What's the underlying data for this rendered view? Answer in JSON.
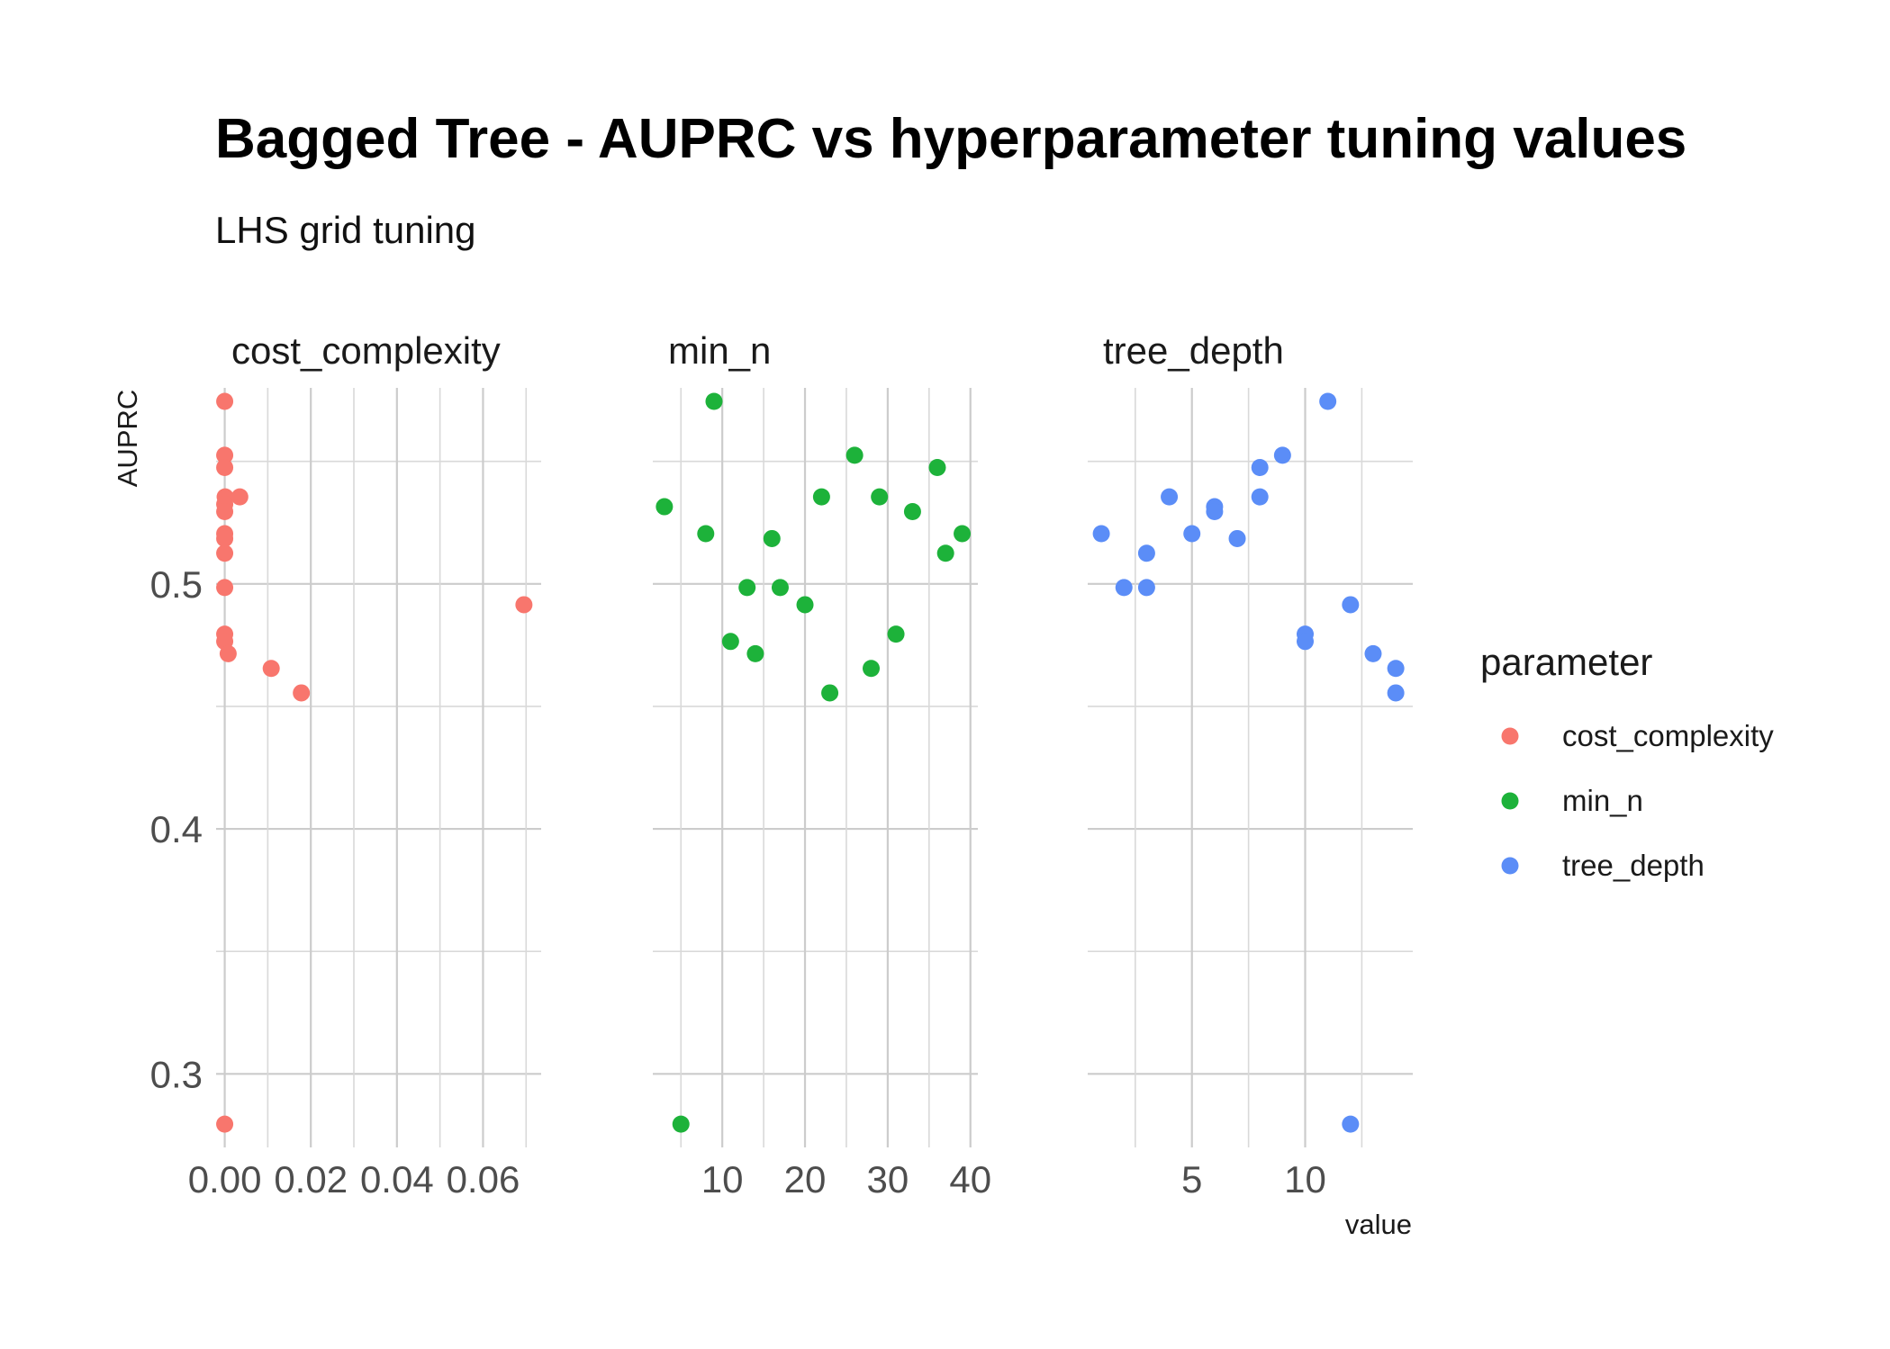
{
  "chart_data": {
    "type": "scatter",
    "title": "Bagged Tree - AUPRC vs hyperparameter tuning values",
    "subtitle": "LHS grid tuning",
    "xlabel": "value",
    "ylabel": "AUPRC",
    "ylim": [
      0.27,
      0.58
    ],
    "y_ticks": [
      0.3,
      0.4,
      0.5
    ],
    "y_tick_labels": [
      "0.3",
      "0.4",
      "0.5"
    ],
    "grid": true,
    "legend": {
      "title": "parameter",
      "position": "right",
      "entries": [
        "cost_complexity",
        "min_n",
        "tree_depth"
      ]
    },
    "colors": {
      "cost_complexity": "#F8766D",
      "min_n": "#1DB23A",
      "tree_depth": "#5B8DF7"
    },
    "panels": [
      {
        "name": "cost_complexity",
        "xlim": [
          -0.002,
          0.0735
        ],
        "x_ticks": [
          0.0,
          0.02,
          0.04,
          0.06
        ],
        "x_tick_labels": [
          "0.00",
          "0.02",
          "0.04",
          "0.06"
        ],
        "points": [
          {
            "x": 0.0,
            "y": 0.5745
          },
          {
            "x": 0.0,
            "y": 0.5525
          },
          {
            "x": 0.0,
            "y": 0.5475
          },
          {
            "x": 0.0001,
            "y": 0.5355
          },
          {
            "x": 0.0035,
            "y": 0.5355
          },
          {
            "x": 0.0,
            "y": 0.5325
          },
          {
            "x": 0.0,
            "y": 0.5295
          },
          {
            "x": 0.0,
            "y": 0.5205
          },
          {
            "x": 0.0,
            "y": 0.5185
          },
          {
            "x": 0.0,
            "y": 0.5125
          },
          {
            "x": 0.0,
            "y": 0.4985
          },
          {
            "x": 0.0,
            "y": 0.4795
          },
          {
            "x": 0.0,
            "y": 0.4765
          },
          {
            "x": 0.0008,
            "y": 0.4715
          },
          {
            "x": 0.0108,
            "y": 0.4655
          },
          {
            "x": 0.0178,
            "y": 0.4555
          },
          {
            "x": 0.0695,
            "y": 0.4915
          },
          {
            "x": 0.0,
            "y": 0.2795
          }
        ]
      },
      {
        "name": "min_n",
        "xlim": [
          1.6,
          40.9
        ],
        "x_ticks": [
          10,
          20,
          30,
          40
        ],
        "x_tick_labels": [
          "10",
          "20",
          "30",
          "40"
        ],
        "points": [
          {
            "x": 3,
            "y": 0.5315
          },
          {
            "x": 5,
            "y": 0.2795
          },
          {
            "x": 8,
            "y": 0.5205
          },
          {
            "x": 9,
            "y": 0.5745
          },
          {
            "x": 11,
            "y": 0.4765
          },
          {
            "x": 13,
            "y": 0.4985
          },
          {
            "x": 14,
            "y": 0.4715
          },
          {
            "x": 16,
            "y": 0.5185
          },
          {
            "x": 17,
            "y": 0.4985
          },
          {
            "x": 20,
            "y": 0.4915
          },
          {
            "x": 22,
            "y": 0.5355
          },
          {
            "x": 23,
            "y": 0.4555
          },
          {
            "x": 26,
            "y": 0.5525
          },
          {
            "x": 28,
            "y": 0.4655
          },
          {
            "x": 29,
            "y": 0.5355
          },
          {
            "x": 31,
            "y": 0.4795
          },
          {
            "x": 33,
            "y": 0.5295
          },
          {
            "x": 36,
            "y": 0.5475
          },
          {
            "x": 37,
            "y": 0.5125
          },
          {
            "x": 39,
            "y": 0.5205
          }
        ]
      },
      {
        "name": "tree_depth",
        "xlim": [
          0.4,
          14.75
        ],
        "x_ticks": [
          5,
          10
        ],
        "x_tick_labels": [
          "5",
          "10"
        ],
        "points": [
          {
            "x": 1,
            "y": 0.5205
          },
          {
            "x": 2,
            "y": 0.4985
          },
          {
            "x": 3,
            "y": 0.4985
          },
          {
            "x": 3,
            "y": 0.5125
          },
          {
            "x": 4,
            "y": 0.5355
          },
          {
            "x": 5,
            "y": 0.5205
          },
          {
            "x": 6,
            "y": 0.5315
          },
          {
            "x": 6,
            "y": 0.5295
          },
          {
            "x": 7,
            "y": 0.5185
          },
          {
            "x": 8,
            "y": 0.5475
          },
          {
            "x": 8,
            "y": 0.5355
          },
          {
            "x": 9,
            "y": 0.5525
          },
          {
            "x": 10,
            "y": 0.4795
          },
          {
            "x": 10,
            "y": 0.4765
          },
          {
            "x": 11,
            "y": 0.5745
          },
          {
            "x": 12,
            "y": 0.4915
          },
          {
            "x": 12,
            "y": 0.2795
          },
          {
            "x": 13,
            "y": 0.4715
          },
          {
            "x": 14,
            "y": 0.4655
          },
          {
            "x": 14,
            "y": 0.4555
          }
        ]
      }
    ]
  }
}
